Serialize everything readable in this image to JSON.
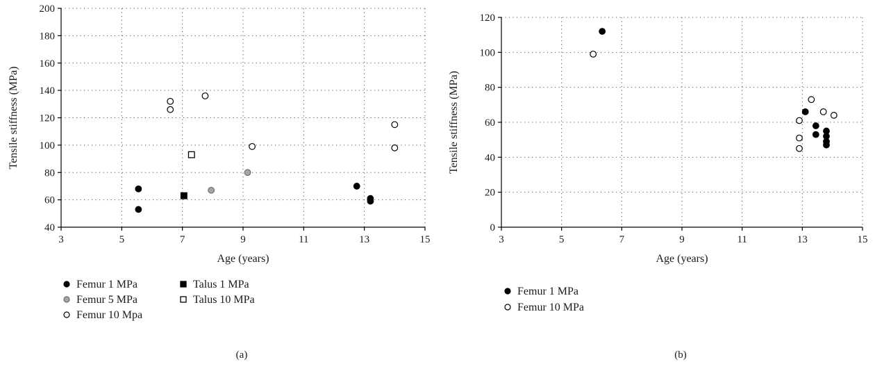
{
  "chart_data": [
    {
      "type": "scatter",
      "panel_label": "(a)",
      "xlabel": "Age (years)",
      "ylabel": "Tensile stiffness (MPa)",
      "xlim": [
        3,
        15
      ],
      "ylim": [
        40,
        200
      ],
      "xticks": [
        "3",
        "5",
        "7",
        "9",
        "11",
        "13",
        "15"
      ],
      "yticks": [
        "40",
        "60",
        "80",
        "100",
        "120",
        "140",
        "160",
        "180",
        "200"
      ],
      "grid": true,
      "legend_position": "bottom",
      "series": [
        {
          "name": "Femur 1 MPa",
          "marker": "circle",
          "fill": "#000000",
          "stroke": "#000000",
          "points": [
            [
              5.55,
              68
            ],
            [
              5.55,
              53
            ],
            [
              12.75,
              70
            ],
            [
              13.2,
              61
            ],
            [
              13.2,
              59
            ]
          ]
        },
        {
          "name": "Femur 5 MPa",
          "marker": "circle",
          "fill": "#a6a6a6",
          "stroke": "#6d6d6d",
          "points": [
            [
              7.95,
              67
            ],
            [
              9.15,
              80
            ]
          ]
        },
        {
          "name": "Femur 10 Mpa",
          "marker": "circle",
          "fill": "#ffffff",
          "stroke": "#000000",
          "points": [
            [
              6.6,
              132
            ],
            [
              6.6,
              126
            ],
            [
              7.75,
              136
            ],
            [
              9.3,
              99
            ],
            [
              14.0,
              115
            ],
            [
              14.0,
              98
            ]
          ]
        },
        {
          "name": "Talus 1 MPa",
          "marker": "square",
          "fill": "#000000",
          "stroke": "#000000",
          "points": [
            [
              7.05,
              63
            ]
          ]
        },
        {
          "name": "Talus 10 MPa",
          "marker": "square",
          "fill": "#ffffff",
          "stroke": "#000000",
          "points": [
            [
              7.3,
              93
            ]
          ]
        }
      ]
    },
    {
      "type": "scatter",
      "panel_label": "(b)",
      "xlabel": "Age (years)",
      "ylabel": "Tensile stiffness (MPa)",
      "xlim": [
        3,
        15
      ],
      "ylim": [
        0,
        120
      ],
      "xticks": [
        "3",
        "5",
        "7",
        "9",
        "11",
        "13",
        "15"
      ],
      "yticks": [
        "0",
        "20",
        "40",
        "60",
        "80",
        "100",
        "120"
      ],
      "grid": true,
      "legend_position": "bottom",
      "series": [
        {
          "name": "Femur 1 MPa",
          "marker": "circle",
          "fill": "#000000",
          "stroke": "#000000",
          "points": [
            [
              6.35,
              112
            ],
            [
              13.1,
              66
            ],
            [
              13.45,
              58
            ],
            [
              13.45,
              53
            ],
            [
              13.8,
              55
            ],
            [
              13.8,
              52
            ],
            [
              13.8,
              49
            ],
            [
              13.8,
              47
            ]
          ]
        },
        {
          "name": "Femur 10 MPa",
          "marker": "circle",
          "fill": "#ffffff",
          "stroke": "#000000",
          "points": [
            [
              6.05,
              99
            ],
            [
              12.9,
              61
            ],
            [
              12.9,
              51
            ],
            [
              12.9,
              45
            ],
            [
              13.3,
              73
            ],
            [
              13.7,
              66
            ],
            [
              14.05,
              64
            ]
          ]
        }
      ]
    }
  ]
}
